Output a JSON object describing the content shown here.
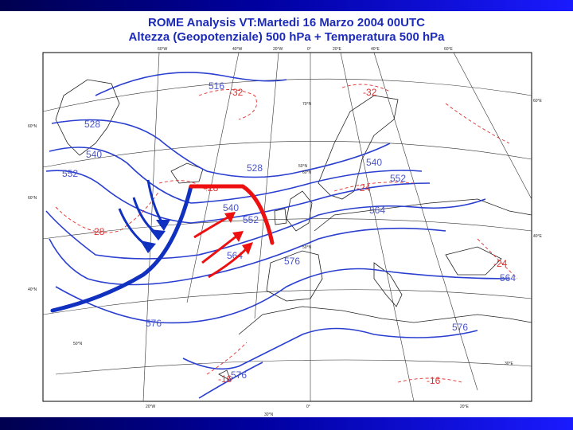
{
  "header": {
    "title_line1": "ROME  Analysis VT:Martedi 16 Marzo 2004 00UTC",
    "title_line2": "Altezza (Geopotenziale) 500 hPa + Temperatura 500 hPa"
  },
  "map": {
    "colors": {
      "banner": "#0000a0",
      "title": "#1c2bb8",
      "geopotential": "#2a3fd0",
      "temperature": "#e03030",
      "coast": "#222222",
      "cold_front": "#1030c0",
      "warm_front": "#ee1010",
      "warm_arrows": "#ee1010",
      "cold_arrows": "#1030c0"
    },
    "graticule_labels": [
      "60°W",
      "40°W",
      "20°W",
      "0°",
      "20°E",
      "40°E",
      "60°E",
      "60°N",
      "70°N",
      "60°E",
      "60°N",
      "50°N",
      "40°E",
      "40°N",
      "50°N",
      "20°W",
      "0°",
      "20°E",
      "30°E",
      "30°N",
      "50°N",
      "60°N"
    ],
    "geopotential_labels": [
      "516",
      "528",
      "540",
      "552",
      "528",
      "540",
      "552",
      "564",
      "552",
      "540",
      "564",
      "576",
      "564",
      "576",
      "576",
      "576"
    ],
    "temperature_labels": [
      "-32",
      "-32",
      "-28",
      "-24",
      "-28",
      "-16",
      "-16",
      "-24"
    ]
  }
}
